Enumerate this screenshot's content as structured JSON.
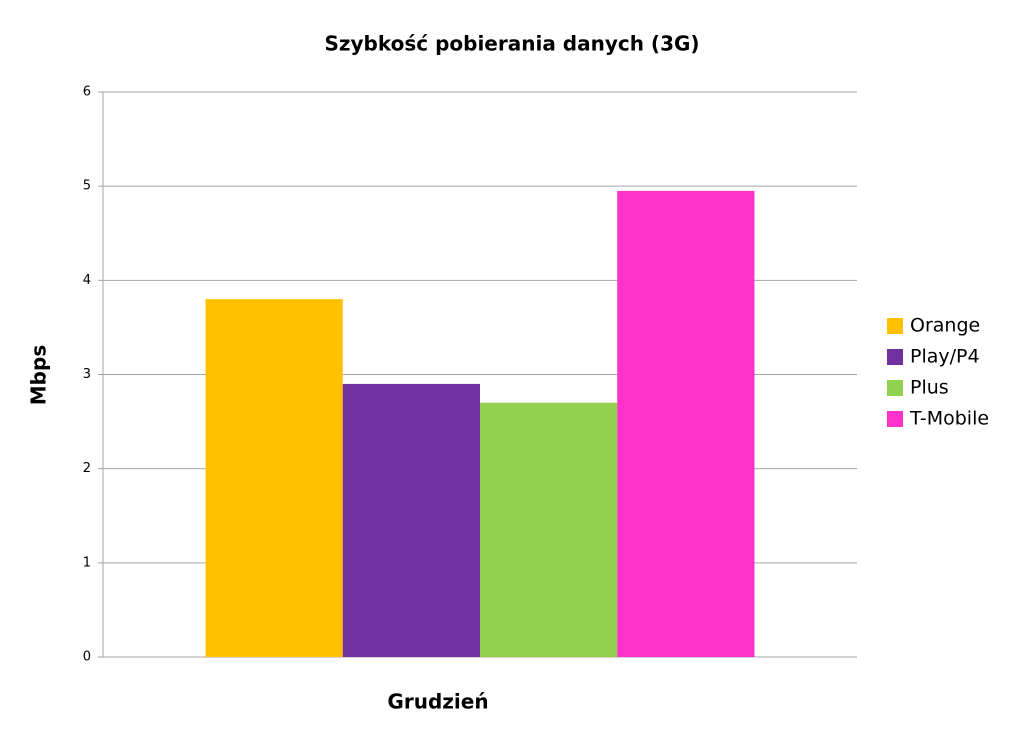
{
  "chart_data": {
    "type": "bar",
    "title": "Szybkość pobierania danych (3G)",
    "y_label": "Mbps",
    "categories": [
      "Grudzień"
    ],
    "series": [
      {
        "name": "Orange",
        "color": "#ffc000",
        "values": [
          3.8
        ]
      },
      {
        "name": "Play/P4",
        "color": "#7030a0",
        "values": [
          2.9
        ]
      },
      {
        "name": "Plus",
        "color": "#92d050",
        "values": [
          2.7
        ]
      },
      {
        "name": "T-Mobile",
        "color": "#ff33cc",
        "values": [
          4.95
        ]
      }
    ],
    "ylim": [
      0,
      6
    ],
    "yticks": [
      0,
      1,
      2,
      3,
      4,
      5,
      6
    ],
    "grid": true,
    "legend": "right"
  }
}
